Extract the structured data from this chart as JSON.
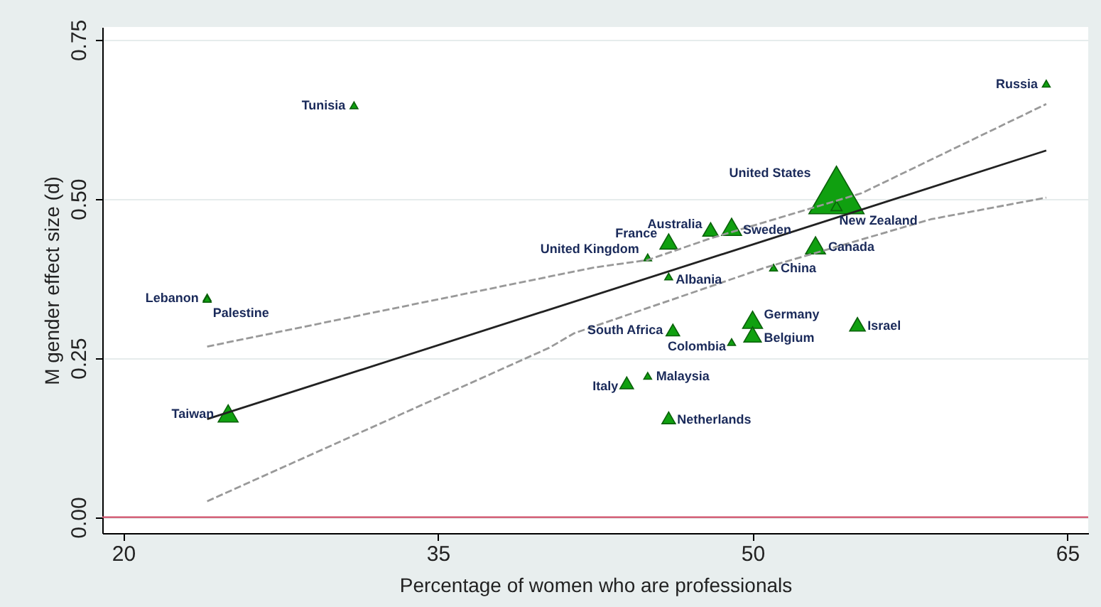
{
  "chart_data": {
    "type": "bubble",
    "xlabel": "Percentage of women who are professionals",
    "ylabel": "M gender effect size (d)",
    "xlim": [
      19,
      66
    ],
    "ylim": [
      -0.025,
      0.77
    ],
    "xticks": [
      20,
      35,
      50,
      65
    ],
    "yticks": [
      {
        "value": 0,
        "label": "0.00"
      },
      {
        "value": 0.25,
        "label": "0.25"
      },
      {
        "value": 0.5,
        "label": "0.50"
      },
      {
        "value": 0.75,
        "label": "0.75"
      }
    ],
    "grid": "y",
    "legend": false,
    "ref_lines": [
      {
        "axis": "y",
        "value": 0,
        "color": "#d0506a"
      }
    ],
    "series": [
      {
        "marker": "triangle",
        "color": "#10a010",
        "x": [
          31,
          24,
          24,
          25,
          64,
          54,
          54,
          48,
          49,
          46,
          45,
          53,
          51,
          46,
          46.2,
          50,
          50,
          55,
          49,
          45,
          44,
          46
        ],
        "values": [
          0.647,
          0.345,
          0.343,
          0.163,
          0.681,
          0.514,
          0.489,
          0.452,
          0.456,
          0.433,
          0.408,
          0.427,
          0.392,
          0.378,
          0.294,
          0.31,
          0.287,
          0.303,
          0.275,
          0.222,
          0.211,
          0.156
        ],
        "sizes": [
          0.02,
          0.02,
          0.02,
          0.13,
          0.02,
          1,
          0.04,
          0.08,
          0.13,
          0.1,
          0.02,
          0.13,
          0.02,
          0.02,
          0.06,
          0.13,
          0.1,
          0.08,
          0.02,
          0.02,
          0.06,
          0.06
        ]
      },
      {
        "type": "line",
        "color": "#222222",
        "line_style": "solid",
        "x": [
          24,
          64
        ],
        "values": [
          0.154,
          0.576
        ]
      },
      {
        "type": "line",
        "color": "#999999",
        "line_style": "dashed",
        "x": [
          24,
          42.4,
          45,
          48,
          55.2,
          64
        ],
        "values": [
          0.268,
          0.392,
          0.404,
          0.438,
          0.509,
          0.649
        ]
      },
      {
        "type": "line",
        "color": "#999999",
        "line_style": "dashed",
        "x": [
          24,
          40.3,
          41.5,
          50.6,
          58.5,
          64
        ],
        "values": [
          0.025,
          0.266,
          0.289,
          0.392,
          0.468,
          0.502
        ]
      }
    ],
    "annotations": [
      {
        "text": "Tunisia",
        "x": 31,
        "y": 0.647
      },
      {
        "text": "Lebanon",
        "x": 24,
        "y": 0.345
      },
      {
        "text": "Palestine",
        "x": 24,
        "y": 0.343
      },
      {
        "text": "Taiwan",
        "x": 25,
        "y": 0.163
      },
      {
        "text": "Russia",
        "x": 64,
        "y": 0.681
      },
      {
        "text": "United States",
        "x": 54,
        "y": 0.514
      },
      {
        "text": "New Zealand",
        "x": 54,
        "y": 0.489
      },
      {
        "text": "Australia",
        "x": 48,
        "y": 0.452
      },
      {
        "text": "Sweden",
        "x": 49,
        "y": 0.456
      },
      {
        "text": "France",
        "x": 46,
        "y": 0.433
      },
      {
        "text": "United Kingdom",
        "x": 45,
        "y": 0.408
      },
      {
        "text": "Canada",
        "x": 53,
        "y": 0.427
      },
      {
        "text": "China",
        "x": 51,
        "y": 0.392
      },
      {
        "text": "Albania",
        "x": 46,
        "y": 0.378
      },
      {
        "text": "South Africa",
        "x": 46.2,
        "y": 0.294
      },
      {
        "text": "Germany",
        "x": 50,
        "y": 0.31
      },
      {
        "text": "Belgium",
        "x": 50,
        "y": 0.287
      },
      {
        "text": "Israel",
        "x": 55,
        "y": 0.303
      },
      {
        "text": "Colombia",
        "x": 49,
        "y": 0.275
      },
      {
        "text": "Malaysia",
        "x": 45,
        "y": 0.222
      },
      {
        "text": "Italy",
        "x": 44,
        "y": 0.211
      },
      {
        "text": "Netherlands",
        "x": 46,
        "y": 0.156
      }
    ]
  }
}
